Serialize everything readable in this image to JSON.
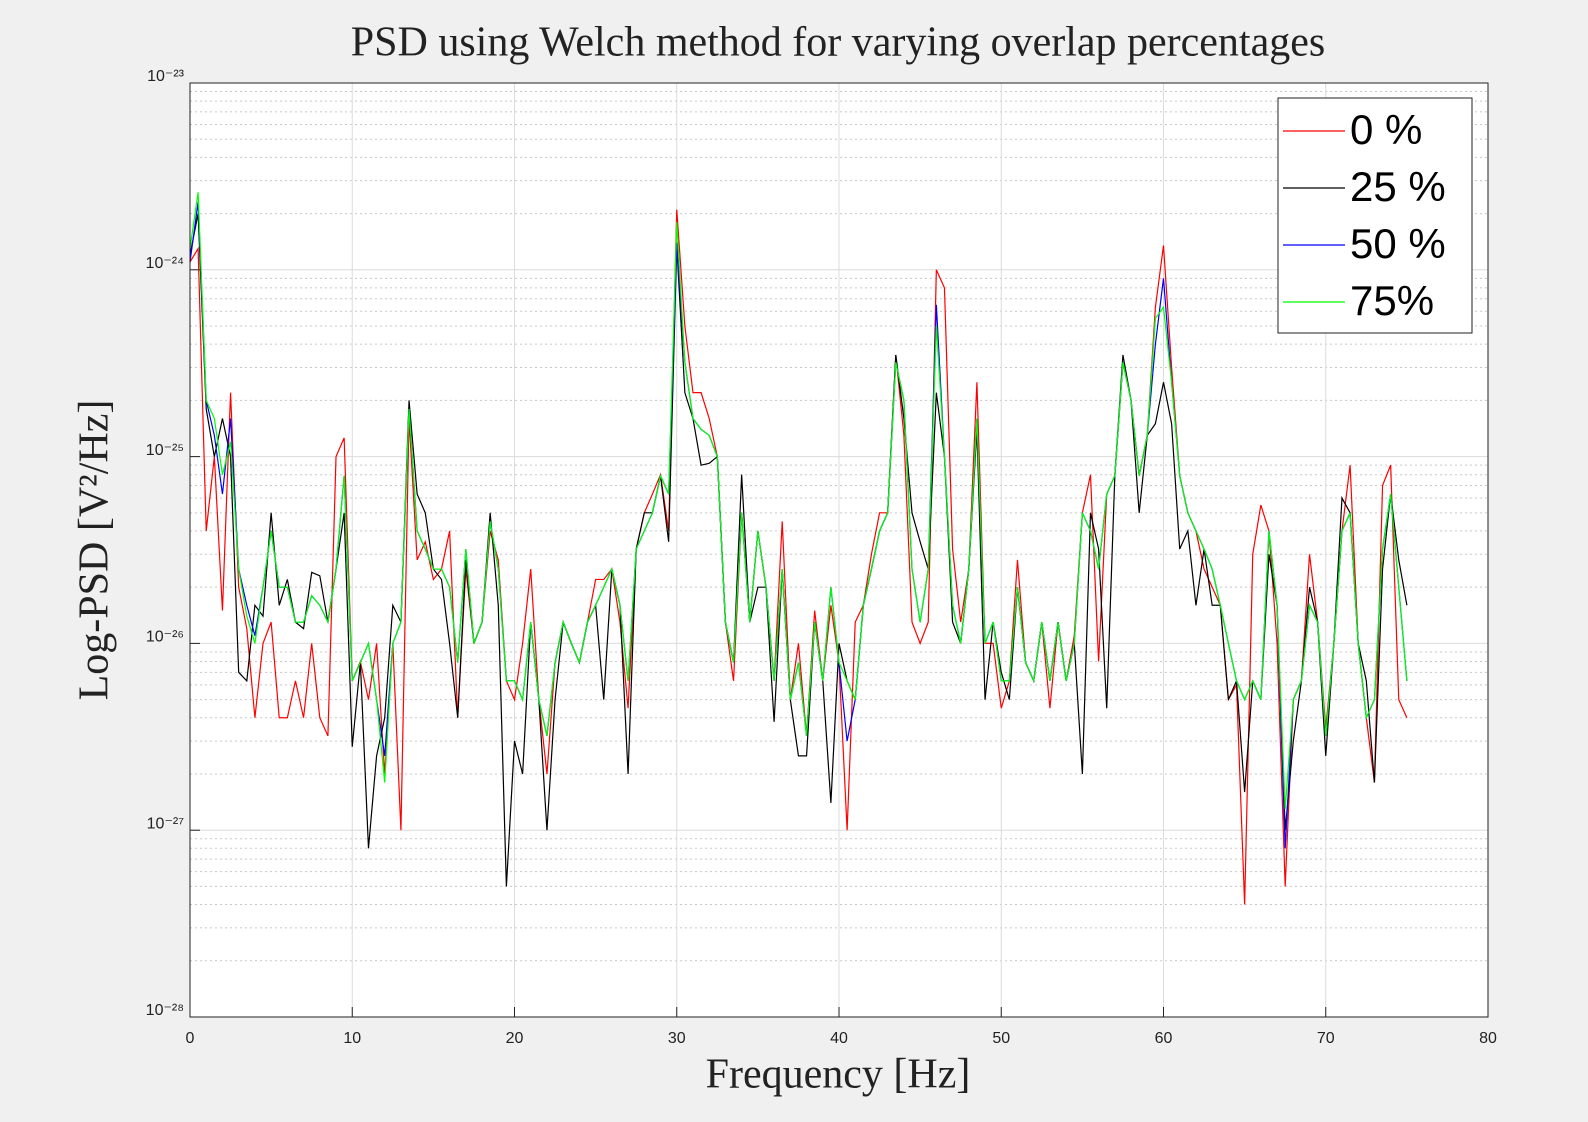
{
  "chart_data": {
    "type": "line",
    "title": "PSD using Welch method for varying overlap percentages",
    "xlabel": "Frequency [Hz]",
    "ylabel": "Log-PSD [V²/Hz]",
    "x": [
      0,
      0.5,
      1,
      1.5,
      2,
      2.5,
      3,
      3.5,
      4,
      4.5,
      5,
      5.5,
      6,
      6.5,
      7,
      7.5,
      8,
      8.5,
      9,
      9.5,
      10,
      10.5,
      11,
      11.5,
      12,
      12.5,
      13,
      13.5,
      14,
      14.5,
      15,
      15.5,
      16,
      16.5,
      17,
      17.5,
      18,
      18.5,
      19,
      19.5,
      20,
      20.5,
      21,
      21.5,
      22,
      22.5,
      23,
      23.5,
      24,
      24.5,
      25,
      25.5,
      26,
      26.5,
      27,
      27.5,
      28,
      28.5,
      29,
      29.5,
      30,
      30.5,
      31,
      31.5,
      32,
      32.5,
      33,
      33.5,
      34,
      34.5,
      35,
      35.5,
      36,
      36.5,
      37,
      37.5,
      38,
      38.5,
      39,
      39.5,
      40,
      40.5,
      41,
      41.5,
      42,
      42.5,
      43,
      43.5,
      44,
      44.5,
      45,
      45.5,
      46,
      46.5,
      47,
      47.5,
      48,
      48.5,
      49,
      49.5,
      50,
      50.5,
      51,
      51.5,
      52,
      52.5,
      53,
      53.5,
      54,
      54.5,
      55,
      55.5,
      56,
      56.5,
      57,
      57.5,
      58,
      58.5,
      59,
      59.5,
      60,
      60.5,
      61,
      61.5,
      62,
      62.5,
      63,
      63.5,
      64,
      64.5,
      65,
      65.5,
      66,
      66.5,
      67,
      67.5,
      68,
      68.5,
      69,
      69.5,
      70,
      70.5,
      71,
      71.5,
      72,
      72.5,
      73,
      73.5,
      74,
      74.5,
      75
    ],
    "series": [
      {
        "name": "0 %",
        "color": "#ff0000",
        "values": [
          1.1e-24,
          1.3e-24,
          4e-26,
          1e-25,
          1.5e-26,
          2.2e-25,
          2e-26,
          1.2e-26,
          4e-27,
          1e-26,
          1.3e-26,
          4e-27,
          4e-27,
          6.3e-27,
          4e-27,
          1e-26,
          4e-27,
          3.2e-27,
          1e-25,
          1.26e-25,
          6.3e-27,
          8e-27,
          5e-27,
          1e-26,
          2e-27,
          1e-26,
          1e-27,
          1.6e-25,
          2.8e-26,
          3.5e-26,
          2.2e-26,
          2.5e-26,
          4e-26,
          4e-27,
          2.5e-26,
          1e-26,
          1.3e-26,
          4e-26,
          2.8e-26,
          6.3e-27,
          5e-27,
          1e-26,
          2.5e-26,
          5e-27,
          2e-27,
          7.9e-27,
          1.3e-26,
          1e-26,
          7.9e-27,
          1.3e-26,
          2.2e-26,
          2.2e-26,
          2.5e-26,
          1.3e-26,
          4.5e-27,
          3.2e-26,
          5e-26,
          6.3e-26,
          8e-26,
          4e-26,
          2.1e-24,
          5e-25,
          2.2e-25,
          2.2e-25,
          1.6e-25,
          1e-25,
          1.3e-26,
          6.3e-27,
          5e-26,
          1.3e-26,
          4e-26,
          2e-26,
          6.3e-27,
          4.5e-26,
          5e-27,
          1e-26,
          3.2e-27,
          1.5e-26,
          6.3e-27,
          1.6e-26,
          7.9e-27,
          1e-27,
          1.3e-26,
          1.6e-26,
          3e-26,
          5e-26,
          5e-26,
          3.5e-25,
          1.3e-25,
          1.3e-26,
          1e-26,
          1.3e-26,
          1e-24,
          8e-25,
          3.2e-26,
          1.3e-26,
          2.5e-26,
          2.5e-25,
          1e-26,
          1e-26,
          4.5e-27,
          6.3e-27,
          2.8e-26,
          7.9e-27,
          6.3e-27,
          1.3e-26,
          4.5e-27,
          1.3e-26,
          6.3e-27,
          1.1e-26,
          5e-26,
          8e-26,
          8e-27,
          6.3e-26,
          7.9e-26,
          3.2e-25,
          2e-25,
          7.9e-26,
          1.3e-25,
          6.3e-25,
          1.35e-24,
          3e-25,
          7.9e-26,
          5e-26,
          4e-26,
          2.5e-26,
          2e-26,
          1.6e-26,
          5e-27,
          6e-27,
          4e-28,
          3e-26,
          5.5e-26,
          4e-26,
          1e-26,
          5e-28,
          5e-27,
          6.3e-27,
          3e-26,
          1.3e-26,
          3.5e-27,
          1e-26,
          4e-26,
          9e-26,
          1e-26,
          4e-27,
          1.8e-27,
          7e-26,
          9e-26,
          5e-27,
          4e-27
        ]
      },
      {
        "name": "25 %",
        "color": "#000000",
        "values": [
          1.2e-24,
          2e-24,
          1.8e-25,
          1e-25,
          1.6e-25,
          1e-25,
          7e-27,
          6.3e-27,
          1.6e-26,
          1.4e-26,
          5e-26,
          1.6e-26,
          2.2e-26,
          1.3e-26,
          1.2e-26,
          2.4e-26,
          2.3e-26,
          1.3e-26,
          2.5e-26,
          5e-26,
          2.8e-27,
          7.9e-27,
          8e-28,
          2.5e-27,
          4e-27,
          1.6e-26,
          1.3e-26,
          2e-25,
          6.3e-26,
          5e-26,
          2.5e-26,
          2.2e-26,
          1e-26,
          4e-27,
          2.8e-26,
          1e-26,
          1.3e-26,
          5e-26,
          1.6e-26,
          5e-28,
          3e-27,
          2e-27,
          1.3e-26,
          5e-27,
          1e-27,
          5e-27,
          1.3e-26,
          1e-26,
          7.9e-27,
          1.3e-26,
          1.6e-26,
          5e-27,
          2.5e-26,
          1.6e-26,
          2e-27,
          3.2e-26,
          5e-26,
          5e-26,
          7.9e-26,
          3.5e-26,
          1.35e-24,
          2.2e-25,
          1.6e-25,
          9e-26,
          9.2e-26,
          1e-25,
          1.3e-26,
          7.9e-27,
          8e-26,
          1.3e-26,
          2e-26,
          2e-26,
          3.8e-27,
          2.5e-26,
          5e-27,
          2.5e-27,
          2.5e-27,
          1.3e-26,
          6.3e-27,
          1.4e-27,
          1e-26,
          6.3e-27,
          5e-27,
          1.6e-26,
          2.5e-26,
          4e-26,
          5e-26,
          3.5e-25,
          1.6e-25,
          5e-26,
          3.5e-26,
          2.5e-26,
          2.2e-25,
          1e-25,
          1.3e-26,
          1e-26,
          2.5e-26,
          1.4e-25,
          5e-27,
          1.3e-26,
          7e-27,
          5e-27,
          2e-26,
          7.9e-27,
          6.3e-27,
          1.3e-26,
          6.3e-27,
          1.3e-26,
          6.3e-27,
          1e-26,
          2e-27,
          5e-26,
          3.2e-26,
          4.5e-27,
          7.9e-26,
          3.5e-25,
          2e-25,
          5e-26,
          1.3e-25,
          1.5e-25,
          2.5e-25,
          1.5e-25,
          3.2e-26,
          4e-26,
          1.6e-26,
          3.2e-26,
          1.6e-26,
          1.6e-26,
          5e-27,
          6.3e-27,
          1.6e-27,
          6.3e-27,
          5e-27,
          3e-26,
          1.6e-26,
          1e-27,
          3e-27,
          6.3e-27,
          2e-26,
          1.3e-26,
          2.5e-27,
          1e-26,
          6e-26,
          5e-26,
          1e-26,
          6.3e-27,
          1.8e-27,
          2.5e-26,
          6.3e-26,
          2.8e-26,
          1.6e-26
        ]
      },
      {
        "name": "50 %",
        "color": "#0000ff",
        "values": [
          1.1e-24,
          2.3e-24,
          2e-25,
          1.3e-25,
          6.3e-26,
          1.6e-25,
          2.5e-26,
          1.6e-26,
          1.1e-26,
          2e-26,
          4e-26,
          2e-26,
          2e-26,
          1.3e-26,
          1.3e-26,
          1.8e-26,
          1.6e-26,
          1.3e-26,
          2.5e-26,
          7.9e-26,
          6.3e-27,
          7.9e-27,
          1e-26,
          5e-27,
          2.5e-27,
          1e-26,
          1.3e-26,
          1.8e-25,
          4e-26,
          3.2e-26,
          2.5e-26,
          2.5e-26,
          2e-26,
          7.9e-27,
          3.2e-26,
          1e-26,
          1.3e-26,
          4.5e-26,
          2.5e-26,
          6.3e-27,
          6.3e-27,
          5e-27,
          1.3e-26,
          5e-27,
          3.2e-27,
          7.9e-27,
          1.3e-26,
          1e-26,
          7.9e-27,
          1.3e-26,
          1.6e-26,
          2e-26,
          2.5e-26,
          1.6e-26,
          6.3e-27,
          3.2e-26,
          4e-26,
          5e-26,
          7.9e-26,
          6.3e-26,
          1.4e-24,
          3.2e-25,
          1.6e-25,
          1.4e-25,
          1.3e-25,
          1e-25,
          1.3e-26,
          7.9e-27,
          5e-26,
          1.3e-26,
          4e-26,
          2e-26,
          6.3e-27,
          2.5e-26,
          5e-27,
          7.9e-27,
          3.2e-27,
          1.3e-26,
          6.3e-27,
          2e-26,
          7.9e-27,
          3e-27,
          5e-27,
          1.6e-26,
          2.5e-26,
          4e-26,
          5e-26,
          3.2e-25,
          2e-25,
          2.5e-26,
          1.3e-26,
          2.5e-26,
          6.5e-25,
          1e-25,
          1.6e-26,
          1e-26,
          2.5e-26,
          1.6e-25,
          1e-26,
          1.3e-26,
          6.3e-27,
          6.3e-27,
          2e-26,
          7.9e-27,
          6.3e-27,
          1.3e-26,
          6.3e-27,
          1.3e-26,
          6.3e-27,
          1e-26,
          5e-26,
          4e-26,
          2.5e-26,
          6.3e-26,
          7.9e-26,
          3.2e-25,
          2e-25,
          7.9e-26,
          1.3e-25,
          4e-25,
          9e-25,
          2.5e-25,
          7.9e-26,
          5e-26,
          4e-26,
          3.2e-26,
          2.5e-26,
          1.6e-26,
          1e-26,
          6.3e-27,
          5e-27,
          6.3e-27,
          5e-27,
          4e-26,
          1.6e-26,
          8e-28,
          5e-27,
          6.3e-27,
          1.6e-26,
          1.3e-26,
          3.2e-27,
          1e-26,
          4e-26,
          5e-26,
          1e-26,
          4e-27,
          5e-27,
          3.2e-26,
          6.3e-26,
          2e-26,
          6.3e-27
        ]
      },
      {
        "name": "75%",
        "color": "#00ff00",
        "values": [
          1.3e-24,
          2.6e-24,
          2e-25,
          1.6e-25,
          8e-26,
          1.2e-25,
          2.5e-26,
          1.4e-26,
          1e-26,
          2e-26,
          4e-26,
          2e-26,
          2e-26,
          1.3e-26,
          1.3e-26,
          1.8e-26,
          1.6e-26,
          1.3e-26,
          2.5e-26,
          7.9e-26,
          6.3e-27,
          7.9e-27,
          1e-26,
          5e-27,
          1.8e-27,
          1e-26,
          1.3e-26,
          1.8e-25,
          4e-26,
          3.2e-26,
          2.5e-26,
          2.5e-26,
          2e-26,
          7.9e-27,
          3.2e-26,
          1e-26,
          1.3e-26,
          4.5e-26,
          2.5e-26,
          6.3e-27,
          6.3e-27,
          5e-27,
          1.3e-26,
          5e-27,
          3.2e-27,
          7.9e-27,
          1.3e-26,
          1e-26,
          7.9e-27,
          1.3e-26,
          1.6e-26,
          2e-26,
          2.5e-26,
          1.6e-26,
          6.3e-27,
          3.2e-26,
          4e-26,
          5e-26,
          7.9e-26,
          6.3e-26,
          1.8e-24,
          3.2e-25,
          1.6e-25,
          1.4e-25,
          1.3e-25,
          1e-25,
          1.3e-26,
          7.9e-27,
          5e-26,
          1.3e-26,
          4e-26,
          2e-26,
          6.3e-27,
          2.5e-26,
          5e-27,
          7.9e-27,
          3.2e-27,
          1.3e-26,
          6.3e-27,
          2e-26,
          7.9e-27,
          6.3e-27,
          5e-27,
          1.6e-26,
          2.5e-26,
          4e-26,
          5e-26,
          3.2e-25,
          2e-25,
          2.5e-26,
          1.3e-26,
          2.5e-26,
          5e-25,
          1e-25,
          1.6e-26,
          1e-26,
          2.5e-26,
          1.6e-25,
          1e-26,
          1.3e-26,
          6.3e-27,
          6.3e-27,
          2e-26,
          7.9e-27,
          6.3e-27,
          1.3e-26,
          6.3e-27,
          1.3e-26,
          6.3e-27,
          1e-26,
          5e-26,
          4e-26,
          2.5e-26,
          6.3e-26,
          7.9e-26,
          3.2e-25,
          2e-25,
          7.9e-26,
          1.3e-25,
          5.5e-25,
          6.3e-25,
          2.5e-25,
          7.9e-26,
          5e-26,
          4e-26,
          3.2e-26,
          2.5e-26,
          1.6e-26,
          1e-26,
          6.3e-27,
          5e-27,
          6.3e-27,
          5e-27,
          4e-26,
          1.6e-26,
          1.3e-27,
          5e-27,
          6.3e-27,
          1.6e-26,
          1.3e-26,
          3.2e-27,
          1e-26,
          4e-26,
          5e-26,
          1e-26,
          4e-27,
          5e-27,
          3.2e-26,
          6.3e-26,
          2e-26,
          6.3e-27
        ]
      }
    ],
    "xlim": [
      0,
      80
    ],
    "xticks": [
      0,
      10,
      20,
      30,
      40,
      50,
      60,
      70,
      80
    ],
    "ylim": [
      1e-28,
      1e-23
    ],
    "yticks": [
      {
        "value": 1e-28,
        "label": "10⁻²⁸"
      },
      {
        "value": 1e-27,
        "label": "10⁻²⁷"
      },
      {
        "value": 1e-26,
        "label": "10⁻²⁶"
      },
      {
        "value": 1e-25,
        "label": "10⁻²⁵"
      },
      {
        "value": 1e-24,
        "label": "10⁻²⁴"
      },
      {
        "value": 1e-23,
        "label": "10⁻²³"
      }
    ],
    "ylog": true,
    "grid": true,
    "minor_grid": true,
    "legend": "northeast"
  }
}
